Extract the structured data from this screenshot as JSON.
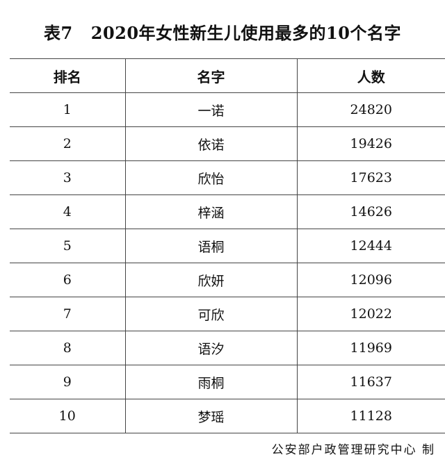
{
  "title": {
    "label": "表7",
    "text": "2020年女性新生儿使用最多的10个名字"
  },
  "table": {
    "headers": [
      "排名",
      "名字",
      "人数"
    ],
    "rows": [
      [
        "1",
        "一诺",
        "24820"
      ],
      [
        "2",
        "依诺",
        "19426"
      ],
      [
        "3",
        "欣怡",
        "17623"
      ],
      [
        "4",
        "梓涵",
        "14626"
      ],
      [
        "5",
        "语桐",
        "12444"
      ],
      [
        "6",
        "欣妍",
        "12096"
      ],
      [
        "7",
        "可欣",
        "12022"
      ],
      [
        "8",
        "语汐",
        "11969"
      ],
      [
        "9",
        "雨桐",
        "11637"
      ],
      [
        "10",
        "梦瑶",
        "11128"
      ]
    ]
  },
  "footer": "公安部户政管理研究中心 制"
}
